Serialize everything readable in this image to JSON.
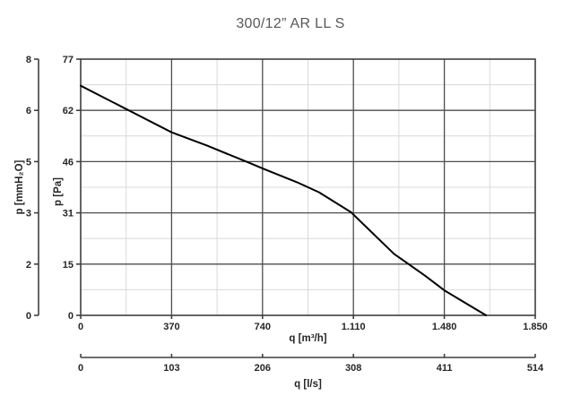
{
  "title": "300/12” AR LL S",
  "chart_data": {
    "type": "line",
    "title": "300/12” AR LL S",
    "series": [
      {
        "name": "fan-pressure-curve",
        "points": [
          [
            0,
            69
          ],
          [
            185,
            62
          ],
          [
            370,
            55
          ],
          [
            515,
            51
          ],
          [
            680,
            46
          ],
          [
            745,
            44
          ],
          [
            880,
            40
          ],
          [
            970,
            37
          ],
          [
            1100,
            31
          ],
          [
            1275,
            18.5
          ],
          [
            1400,
            12
          ],
          [
            1480,
            7.5
          ],
          [
            1650,
            0
          ]
        ]
      }
    ],
    "x_axis_primary": {
      "label": "q [m³/h]",
      "range": [
        0,
        1850
      ],
      "tick_values": [
        0,
        370,
        740,
        1110,
        1480,
        1850
      ],
      "tick_labels": [
        "0",
        "370",
        "740",
        "1.110",
        "1.480",
        "1.850"
      ]
    },
    "x_axis_secondary": {
      "label": "q [l/s]",
      "range": [
        0,
        514
      ],
      "tick_labels": [
        "0",
        "103",
        "206",
        "308",
        "411",
        "514"
      ]
    },
    "y_axis_pa": {
      "label": "p [Pa]",
      "range": [
        0,
        77
      ],
      "tick_labels_top_to_bottom": [
        "77",
        "62",
        "46",
        "31",
        "15",
        "0"
      ]
    },
    "y_axis_mmh2o": {
      "label": "p [mmH₂O]",
      "tick_labels_top_to_bottom": [
        "8",
        "6",
        "5",
        "3",
        "2",
        "0"
      ]
    },
    "grid": {
      "minor_between_majors": true,
      "legend": "none"
    },
    "colors": {
      "curve": "#000000",
      "axis": "#3f3f3f",
      "major_grid": "#4d4d4d",
      "minor_grid": "#d9d9d9",
      "tick_text": "#262626",
      "title_text": "#595959"
    }
  }
}
